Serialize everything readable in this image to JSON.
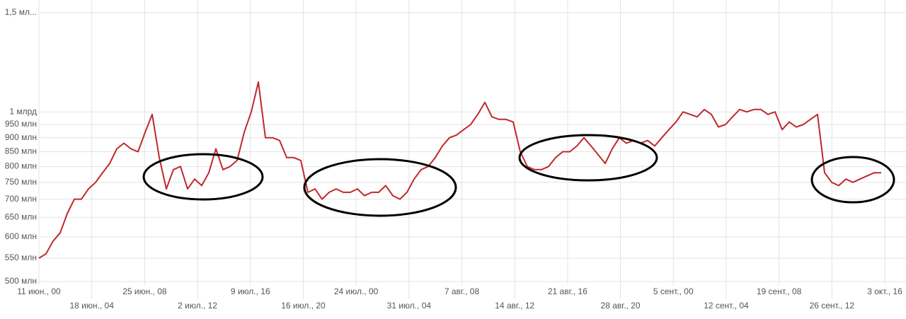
{
  "chart_data": {
    "type": "line",
    "log_scale": true,
    "grid": true,
    "xticks": [
      "11 июн., 00",
      "18 июн., 04",
      "25 июн., 08",
      "2 июл., 12",
      "9 июл., 16",
      "16 июл., 20",
      "24 июл., 00",
      "31 июл., 04",
      "7 авг., 08",
      "14 авг., 12",
      "21 авг., 16",
      "28 авг., 20",
      "5 сент., 00",
      "12 сент., 04",
      "19 сент., 08",
      "26 сент., 12",
      "3 окт., 16"
    ],
    "ylim": [
      500,
      1500
    ],
    "yticks": [
      {
        "value": 500,
        "label": "500 млн"
      },
      {
        "value": 550,
        "label": "550 млн"
      },
      {
        "value": 600,
        "label": "600 млн"
      },
      {
        "value": 650,
        "label": "650 млн"
      },
      {
        "value": 700,
        "label": "700 млн"
      },
      {
        "value": 750,
        "label": "750 млн"
      },
      {
        "value": 800,
        "label": "800 млн"
      },
      {
        "value": 850,
        "label": "850 млн"
      },
      {
        "value": 900,
        "label": "900 млн"
      },
      {
        "value": 950,
        "label": "950 млн"
      },
      {
        "value": 1000,
        "label": "1 млрд"
      },
      {
        "value": 1500,
        "label": "1,5 мл..."
      }
    ],
    "color": "#c0282d",
    "values": [
      550,
      560,
      590,
      610,
      660,
      700,
      700,
      730,
      750,
      780,
      810,
      860,
      880,
      860,
      850,
      920,
      990,
      830,
      730,
      790,
      800,
      730,
      760,
      740,
      780,
      860,
      790,
      800,
      820,
      920,
      1000,
      1130,
      900,
      900,
      890,
      830,
      830,
      820,
      720,
      730,
      700,
      720,
      730,
      720,
      720,
      730,
      710,
      720,
      720,
      740,
      710,
      700,
      720,
      760,
      790,
      800,
      830,
      870,
      900,
      910,
      930,
      950,
      990,
      1040,
      980,
      970,
      970,
      960,
      850,
      800,
      790,
      790,
      800,
      830,
      850,
      850,
      870,
      900,
      870,
      840,
      810,
      860,
      900,
      880,
      890,
      880,
      890,
      870,
      900,
      930,
      960,
      1000,
      990,
      980,
      1010,
      990,
      940,
      950,
      980,
      1010,
      1000,
      1010,
      1010,
      990,
      1000,
      930,
      960,
      940,
      950,
      970,
      990,
      780,
      750,
      740,
      760,
      750,
      760,
      770,
      780,
      780
    ]
  }
}
